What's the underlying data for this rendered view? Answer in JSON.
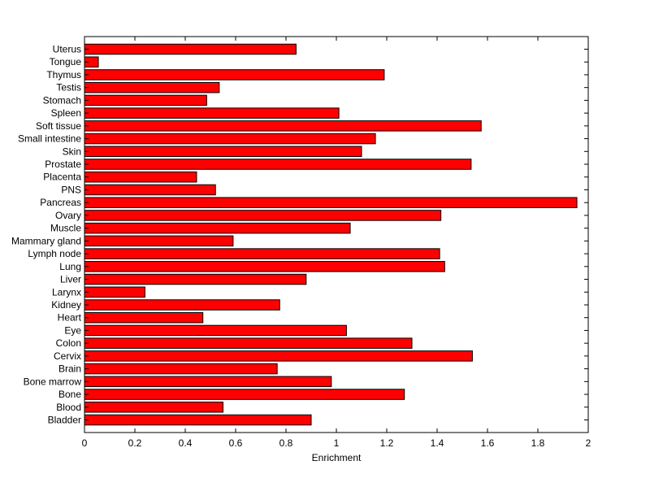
{
  "chart_data": {
    "type": "bar",
    "orientation": "horizontal",
    "title": "",
    "xlabel": "Enrichment",
    "ylabel": "",
    "xlim": [
      0,
      2
    ],
    "xticks": [
      0,
      0.2,
      0.4,
      0.6,
      0.8,
      1,
      1.2,
      1.4,
      1.6,
      1.8,
      2
    ],
    "bar_color": "#ff0000",
    "edge_color": "#000000",
    "grid": false,
    "legend": "none",
    "categories": [
      "Bladder",
      "Blood",
      "Bone",
      "Bone marrow",
      "Brain",
      "Cervix",
      "Colon",
      "Eye",
      "Heart",
      "Kidney",
      "Larynx",
      "Liver",
      "Lung",
      "Lymph node",
      "Mammary gland",
      "Muscle",
      "Ovary",
      "Pancreas",
      "PNS",
      "Placenta",
      "Prostate",
      "Skin",
      "Small intestine",
      "Soft tissue",
      "Spleen",
      "Stomach",
      "Testis",
      "Thymus",
      "Tongue",
      "Uterus"
    ],
    "values": [
      0.9,
      0.55,
      1.27,
      0.98,
      0.765,
      1.54,
      1.3,
      1.04,
      0.47,
      0.775,
      0.24,
      0.88,
      1.43,
      1.41,
      0.59,
      1.055,
      1.415,
      1.955,
      0.52,
      0.445,
      1.535,
      1.1,
      1.155,
      1.575,
      1.01,
      0.485,
      0.535,
      1.19,
      0.055,
      0.84
    ]
  }
}
